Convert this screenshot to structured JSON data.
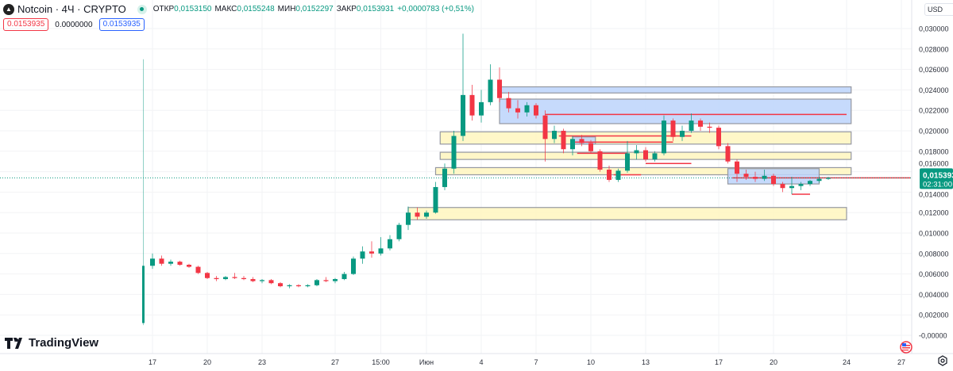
{
  "header": {
    "symbol": "Notcoin · 4Ч · CRYPTO",
    "open_label": "ОТКР",
    "open": "0,0153150",
    "high_label": "МАКС",
    "high": "0,0155248",
    "low_label": "МИН",
    "low": "0,0152297",
    "close_label": "ЗАКР",
    "close": "0,0153931",
    "change": "+0,0000783 (+0,51%)",
    "sell_price": "0.0153935",
    "spread": "0.0000000",
    "buy_price": "0.0153935"
  },
  "currency": "USD",
  "brand": "TradingView",
  "icons": {
    "symbol_logo": "notcoin-logo",
    "status": "market-open-dot",
    "settings": "gear-icon",
    "events": "us-flag-icon"
  },
  "colors": {
    "up": "#089981",
    "down": "#f23645",
    "zone_yellow": "#fff6c2",
    "zone_blue": "#bcd4fb",
    "line_red": "#f23645"
  },
  "chart_data": {
    "type": "candlestick",
    "interval_shown": "4Ч",
    "y_ticks": [
      "0,030000",
      "0,028000",
      "0,026000",
      "0,024000",
      "0,022000",
      "0,020000",
      "0,018000",
      "0,016000",
      "0,014000",
      "0,012000",
      "0,010000",
      "0,008000",
      "0,006000",
      "0,004000",
      "0,002000",
      "-0,00000"
    ],
    "y_range": [
      0.0,
      0.03
    ],
    "x_ticks": [
      {
        "t": "05-17 00",
        "label": "17"
      },
      {
        "t": "05-20 00",
        "label": "20"
      },
      {
        "t": "05-23 00",
        "label": "23"
      },
      {
        "t": "05-27 00",
        "label": "27"
      },
      {
        "t": "05-29 12",
        "label": "15:00"
      },
      {
        "t": "06-01 00",
        "label": "Июн"
      },
      {
        "t": "06-04 00",
        "label": "4"
      },
      {
        "t": "06-07 00",
        "label": "7"
      },
      {
        "t": "06-10 00",
        "label": "10"
      },
      {
        "t": "06-13 00",
        "label": "13"
      },
      {
        "t": "06-17 00",
        "label": "17"
      },
      {
        "t": "06-20 00",
        "label": "20"
      },
      {
        "t": "06-24 00",
        "label": "24"
      },
      {
        "t": "06-27 00",
        "label": "27"
      }
    ],
    "last_price": 0.015393,
    "last_price_label": "0,015393",
    "countdown": "02:31:00",
    "candles": [
      [
        "05-16 12",
        0.0012,
        0.027,
        0.001,
        0.0068
      ],
      [
        "05-17 00",
        0.0068,
        0.008,
        0.0065,
        0.0075
      ],
      [
        "05-17 12",
        0.0075,
        0.0078,
        0.0068,
        0.007
      ],
      [
        "05-18 00",
        0.007,
        0.0074,
        0.0068,
        0.0072
      ],
      [
        "05-18 12",
        0.0072,
        0.0073,
        0.0068,
        0.0069
      ],
      [
        "05-19 00",
        0.0069,
        0.007,
        0.0066,
        0.0067
      ],
      [
        "05-19 12",
        0.0067,
        0.0068,
        0.006,
        0.0061
      ],
      [
        "05-20 00",
        0.0061,
        0.0062,
        0.0055,
        0.0056
      ],
      [
        "05-20 12",
        0.0056,
        0.0058,
        0.0053,
        0.0055
      ],
      [
        "05-21 00",
        0.0055,
        0.0058,
        0.0054,
        0.0057
      ],
      [
        "05-21 12",
        0.0057,
        0.0061,
        0.0055,
        0.0056
      ],
      [
        "05-22 00",
        0.0056,
        0.0058,
        0.0054,
        0.0055
      ],
      [
        "05-22 12",
        0.0055,
        0.0057,
        0.0052,
        0.0053
      ],
      [
        "05-23 00",
        0.0053,
        0.0055,
        0.0051,
        0.0054
      ],
      [
        "05-23 12",
        0.0054,
        0.0055,
        0.005,
        0.0051
      ],
      [
        "05-24 00",
        0.0051,
        0.0052,
        0.0047,
        0.0048
      ],
      [
        "05-24 12",
        0.0048,
        0.005,
        0.0046,
        0.0049
      ],
      [
        "05-25 00",
        0.0049,
        0.005,
        0.0047,
        0.0048
      ],
      [
        "05-25 12",
        0.0048,
        0.005,
        0.0047,
        0.0049
      ],
      [
        "05-26 00",
        0.0049,
        0.0055,
        0.0048,
        0.0054
      ],
      [
        "05-26 12",
        0.0054,
        0.0057,
        0.0052,
        0.0053
      ],
      [
        "05-27 00",
        0.0053,
        0.0056,
        0.0051,
        0.0055
      ],
      [
        "05-27 12",
        0.0055,
        0.0062,
        0.0054,
        0.006
      ],
      [
        "05-28 00",
        0.006,
        0.0077,
        0.0059,
        0.0075
      ],
      [
        "05-28 12",
        0.0075,
        0.0087,
        0.007,
        0.0082
      ],
      [
        "05-29 00",
        0.0082,
        0.0092,
        0.0076,
        0.008
      ],
      [
        "05-29 12",
        0.008,
        0.0096,
        0.0078,
        0.0085
      ],
      [
        "05-30 00",
        0.0085,
        0.0098,
        0.0083,
        0.0094
      ],
      [
        "05-30 12",
        0.0094,
        0.011,
        0.0092,
        0.0108
      ],
      [
        "05-31 00",
        0.0108,
        0.0126,
        0.0103,
        0.012
      ],
      [
        "05-31 12",
        0.012,
        0.0125,
        0.0113,
        0.0116
      ],
      [
        "06-01 00",
        0.0116,
        0.0122,
        0.0114,
        0.012
      ],
      [
        "06-01 12",
        0.012,
        0.015,
        0.0119,
        0.0145
      ],
      [
        "06-02 00",
        0.0145,
        0.0168,
        0.0142,
        0.0163
      ],
      [
        "06-02 12",
        0.0163,
        0.02,
        0.0158,
        0.0195
      ],
      [
        "06-03 00",
        0.0195,
        0.0295,
        0.019,
        0.0235
      ],
      [
        "06-03 12",
        0.0235,
        0.0245,
        0.021,
        0.0215
      ],
      [
        "06-04 00",
        0.0215,
        0.024,
        0.0208,
        0.0228
      ],
      [
        "06-04 12",
        0.0228,
        0.0265,
        0.0225,
        0.025
      ],
      [
        "06-05 00",
        0.025,
        0.0262,
        0.0228,
        0.0232
      ],
      [
        "06-05 12",
        0.0232,
        0.0238,
        0.0218,
        0.0222
      ],
      [
        "06-06 00",
        0.0222,
        0.023,
        0.0212,
        0.0218
      ],
      [
        "06-06 12",
        0.0218,
        0.0228,
        0.0214,
        0.0225
      ],
      [
        "06-07 00",
        0.0225,
        0.0227,
        0.0212,
        0.0215
      ],
      [
        "06-07 12",
        0.0215,
        0.022,
        0.017,
        0.0192
      ],
      [
        "06-08 00",
        0.0192,
        0.0205,
        0.0188,
        0.02
      ],
      [
        "06-08 12",
        0.02,
        0.0202,
        0.0178,
        0.0182
      ],
      [
        "06-09 00",
        0.0182,
        0.0195,
        0.0176,
        0.0192
      ],
      [
        "06-09 12",
        0.0192,
        0.0196,
        0.0185,
        0.0188
      ],
      [
        "06-10 00",
        0.0188,
        0.0191,
        0.0178,
        0.018
      ],
      [
        "06-10 12",
        0.018,
        0.0182,
        0.016,
        0.0162
      ],
      [
        "06-11 00",
        0.0162,
        0.0166,
        0.015,
        0.0152
      ],
      [
        "06-11 12",
        0.0152,
        0.0163,
        0.015,
        0.0161
      ],
      [
        "06-12 00",
        0.0161,
        0.019,
        0.0159,
        0.0178
      ],
      [
        "06-12 12",
        0.0178,
        0.0186,
        0.0172,
        0.0181
      ],
      [
        "06-13 00",
        0.0181,
        0.0184,
        0.017,
        0.0172
      ],
      [
        "06-13 12",
        0.0172,
        0.018,
        0.017,
        0.0178
      ],
      [
        "06-14 00",
        0.0178,
        0.0215,
        0.0176,
        0.021
      ],
      [
        "06-14 12",
        0.021,
        0.0212,
        0.019,
        0.0194
      ],
      [
        "06-15 00",
        0.0194,
        0.0205,
        0.019,
        0.02
      ],
      [
        "06-15 12",
        0.02,
        0.0217,
        0.0198,
        0.021
      ],
      [
        "06-16 00",
        0.021,
        0.0212,
        0.02,
        0.0204
      ],
      [
        "06-16 12",
        0.0204,
        0.0208,
        0.0198,
        0.0203
      ],
      [
        "06-17 00",
        0.0203,
        0.0205,
        0.0182,
        0.0185
      ],
      [
        "06-17 12",
        0.0185,
        0.0188,
        0.0168,
        0.017
      ],
      [
        "06-18 00",
        0.017,
        0.0172,
        0.015,
        0.0158
      ],
      [
        "06-18 12",
        0.0158,
        0.0162,
        0.0152,
        0.0155
      ],
      [
        "06-19 00",
        0.0155,
        0.016,
        0.015,
        0.0153
      ],
      [
        "06-19 12",
        0.0153,
        0.0162,
        0.0151,
        0.0156
      ],
      [
        "06-20 00",
        0.0156,
        0.0158,
        0.0146,
        0.0148
      ],
      [
        "06-20 12",
        0.0148,
        0.015,
        0.014,
        0.0144
      ],
      [
        "06-21 00",
        0.0144,
        0.0155,
        0.0138,
        0.0146
      ],
      [
        "06-21 12",
        0.0146,
        0.015,
        0.0142,
        0.0148
      ],
      [
        "06-22 00",
        0.0148,
        0.0152,
        0.0146,
        0.0151
      ],
      [
        "06-22 12",
        0.0151,
        0.0155,
        0.0149,
        0.0153
      ],
      [
        "06-23 00",
        0.0153,
        0.0155,
        0.0152,
        0.015393
      ]
    ],
    "zones": [
      {
        "kind": "blue",
        "from": "06-05 00",
        "to": "06-24 06",
        "top": 0.0243,
        "bottom": 0.0237
      },
      {
        "kind": "blue",
        "from": "06-05 00",
        "to": "06-24 06",
        "top": 0.0231,
        "bottom": 0.0207
      },
      {
        "kind": "yellow",
        "from": "06-01 18",
        "to": "06-24 06",
        "top": 0.0199,
        "bottom": 0.0187
      },
      {
        "kind": "yellow",
        "from": "06-01 18",
        "to": "06-24 06",
        "top": 0.0179,
        "bottom": 0.0172
      },
      {
        "kind": "yellow",
        "from": "06-01 12",
        "to": "06-24 06",
        "top": 0.0164,
        "bottom": 0.0157
      },
      {
        "kind": "blue",
        "from": "06-17 12",
        "to": "06-22 12",
        "top": 0.0163,
        "bottom": 0.0148
      },
      {
        "kind": "blue",
        "from": "06-09 00",
        "to": "06-10 06",
        "top": 0.0194,
        "bottom": 0.0187
      },
      {
        "kind": "yellow",
        "from": "05-31 00",
        "to": "06-24 00",
        "top": 0.0125,
        "bottom": 0.0113
      }
    ],
    "lines": [
      {
        "from": "06-07 12",
        "to": "06-24 00",
        "price": 0.0216
      },
      {
        "from": "06-08 06",
        "to": "06-15 12",
        "price": 0.0195
      },
      {
        "from": "06-09 00",
        "to": "06-14 12",
        "price": 0.0189
      },
      {
        "from": "06-09 06",
        "to": "06-12 00",
        "price": 0.0178
      },
      {
        "from": "06-13 00",
        "to": "06-15 12",
        "price": 0.0168
      },
      {
        "from": "06-11 06",
        "to": "06-12 18",
        "price": 0.0157
      },
      {
        "from": "06-17 18",
        "to": "06-27 12",
        "price": 0.0154
      },
      {
        "from": "06-21 00",
        "to": "06-22 00",
        "price": 0.0138
      }
    ]
  }
}
